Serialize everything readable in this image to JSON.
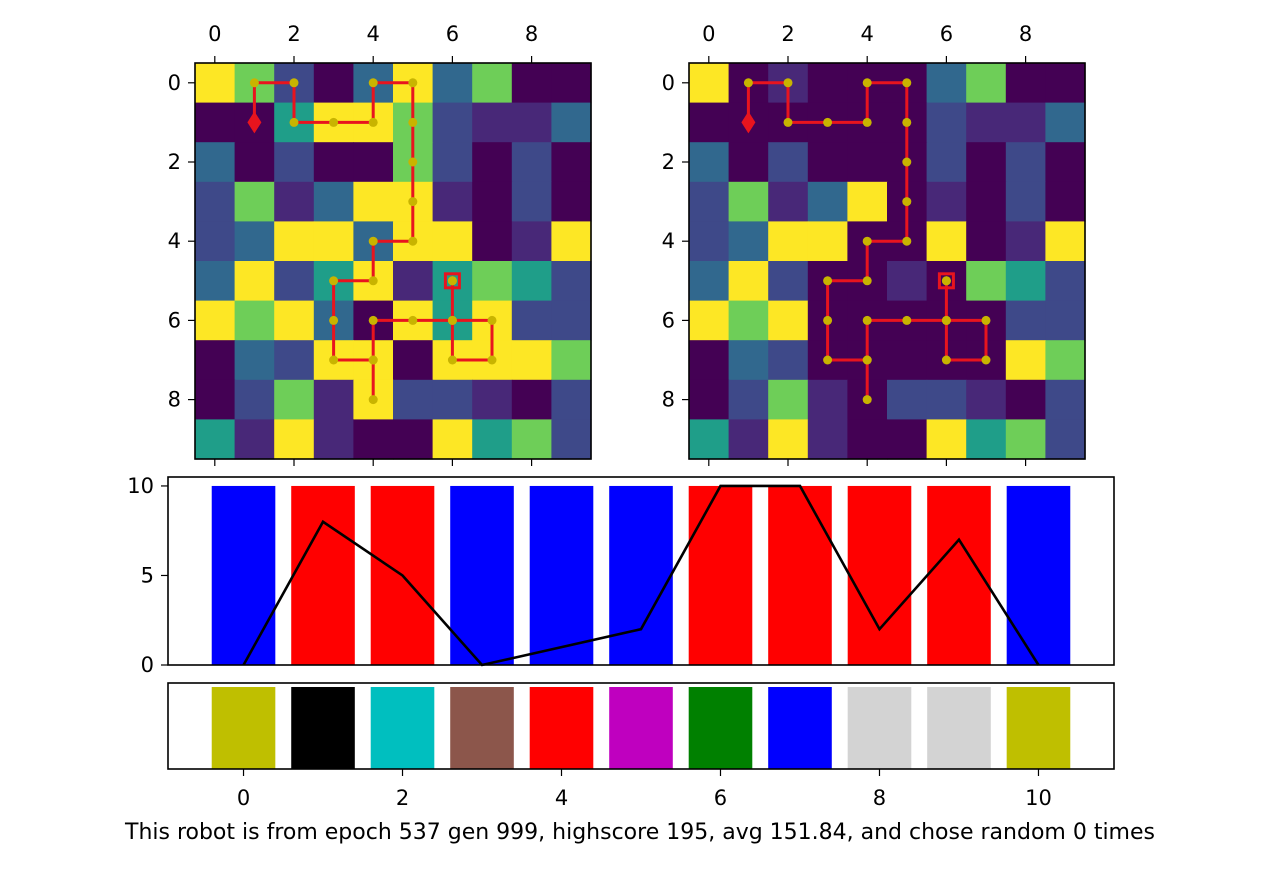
{
  "chart_data": [
    {
      "type": "heatmap",
      "colormap": "viridis",
      "xticks": [
        0,
        2,
        4,
        6,
        8
      ],
      "yticks": [
        0,
        2,
        4,
        6,
        8
      ],
      "grid": [
        [
          9,
          7,
          2,
          0,
          3,
          9,
          3,
          7,
          0,
          0
        ],
        [
          0,
          0,
          5,
          9,
          9,
          7,
          2,
          1,
          1,
          3
        ],
        [
          3,
          0,
          2,
          0,
          0,
          7,
          2,
          0,
          2,
          0
        ],
        [
          2,
          7,
          1,
          3,
          9,
          9,
          1,
          0,
          2,
          0
        ],
        [
          2,
          3,
          9,
          9,
          3,
          9,
          9,
          0,
          1,
          9
        ],
        [
          3,
          9,
          2,
          5,
          9,
          1,
          5,
          7,
          5,
          2
        ],
        [
          9,
          7,
          9,
          3,
          0,
          9,
          5,
          9,
          2,
          2
        ],
        [
          0,
          3,
          2,
          9,
          9,
          0,
          9,
          9,
          9,
          7
        ],
        [
          0,
          2,
          7,
          1,
          9,
          2,
          2,
          1,
          0,
          2
        ],
        [
          5,
          1,
          9,
          1,
          0,
          0,
          9,
          5,
          7,
          2
        ]
      ],
      "path": [
        [
          1,
          1
        ],
        [
          1,
          0
        ],
        [
          2,
          0
        ],
        [
          2,
          1
        ],
        [
          3,
          1
        ],
        [
          4,
          1
        ],
        [
          4,
          0
        ],
        [
          5,
          0
        ],
        [
          5,
          1
        ],
        [
          5,
          2
        ],
        [
          5,
          3
        ],
        [
          5,
          4
        ],
        [
          4,
          4
        ],
        [
          4,
          5
        ],
        [
          3,
          5
        ],
        [
          3,
          6
        ],
        [
          3,
          7
        ],
        [
          4,
          7
        ],
        [
          4,
          8
        ],
        [
          4,
          7
        ],
        [
          4,
          6
        ],
        [
          5,
          6
        ],
        [
          6,
          6
        ],
        [
          6,
          7
        ],
        [
          7,
          7
        ],
        [
          7,
          6
        ],
        [
          6,
          6
        ],
        [
          6,
          5
        ]
      ],
      "start": [
        1,
        1
      ],
      "end": [
        6,
        5
      ]
    },
    {
      "type": "heatmap",
      "colormap": "viridis",
      "xticks": [
        0,
        2,
        4,
        6,
        8
      ],
      "yticks": [
        0,
        2,
        4,
        6,
        8
      ],
      "grid": [
        [
          9,
          0,
          1,
          0,
          0,
          0,
          3,
          7,
          0,
          0
        ],
        [
          0,
          0,
          0,
          0,
          0,
          0,
          2,
          1,
          1,
          3
        ],
        [
          3,
          0,
          2,
          0,
          0,
          0,
          2,
          0,
          2,
          0
        ],
        [
          2,
          7,
          1,
          3,
          9,
          0,
          1,
          0,
          2,
          0
        ],
        [
          2,
          3,
          9,
          9,
          0,
          0,
          9,
          0,
          1,
          9
        ],
        [
          3,
          9,
          2,
          0,
          0,
          1,
          0,
          7,
          5,
          2
        ],
        [
          9,
          7,
          9,
          0,
          0,
          0,
          0,
          0,
          2,
          2
        ],
        [
          0,
          3,
          2,
          0,
          0,
          0,
          0,
          0,
          9,
          7
        ],
        [
          0,
          2,
          7,
          1,
          0,
          2,
          2,
          1,
          0,
          2
        ],
        [
          5,
          1,
          9,
          1,
          0,
          0,
          9,
          5,
          7,
          2
        ]
      ],
      "path": [
        [
          1,
          1
        ],
        [
          1,
          0
        ],
        [
          2,
          0
        ],
        [
          2,
          1
        ],
        [
          3,
          1
        ],
        [
          4,
          1
        ],
        [
          4,
          0
        ],
        [
          5,
          0
        ],
        [
          5,
          1
        ],
        [
          5,
          2
        ],
        [
          5,
          3
        ],
        [
          5,
          4
        ],
        [
          4,
          4
        ],
        [
          4,
          5
        ],
        [
          3,
          5
        ],
        [
          3,
          6
        ],
        [
          3,
          7
        ],
        [
          4,
          7
        ],
        [
          4,
          8
        ],
        [
          4,
          7
        ],
        [
          4,
          6
        ],
        [
          5,
          6
        ],
        [
          6,
          6
        ],
        [
          6,
          7
        ],
        [
          7,
          7
        ],
        [
          7,
          6
        ],
        [
          6,
          6
        ],
        [
          6,
          5
        ]
      ],
      "start": [
        1,
        1
      ],
      "end": [
        6,
        5
      ]
    },
    {
      "type": "bar",
      "categories": [
        0,
        1,
        2,
        3,
        4,
        5,
        6,
        7,
        8,
        9,
        10
      ],
      "values": [
        10,
        10,
        10,
        10,
        10,
        10,
        10,
        10,
        10,
        10,
        10
      ],
      "bar_colors": [
        "#0000ff",
        "#ff0000",
        "#ff0000",
        "#0000ff",
        "#0000ff",
        "#0000ff",
        "#ff0000",
        "#ff0000",
        "#ff0000",
        "#ff0000",
        "#0000ff"
      ],
      "line": {
        "x": [
          0,
          1,
          2,
          3,
          4,
          5,
          6,
          7,
          8,
          9,
          10
        ],
        "y": [
          0,
          8,
          5,
          0,
          1,
          2,
          10,
          10,
          2,
          7,
          0
        ],
        "color": "#000000"
      },
      "yticks": [
        0,
        5,
        10
      ],
      "ylim": [
        0,
        10.5
      ],
      "xlim": [
        -0.95,
        10.95
      ]
    },
    {
      "type": "bar",
      "categories": [
        0,
        1,
        2,
        3,
        4,
        5,
        6,
        7,
        8,
        9,
        10
      ],
      "values": [
        1,
        1,
        1,
        1,
        1,
        1,
        1,
        1,
        1,
        1,
        1
      ],
      "bar_colors": [
        "#bfbf00",
        "#000000",
        "#00bfbf",
        "#8c564b",
        "#ff0000",
        "#bf00bf",
        "#008000",
        "#0000ff",
        "#d3d3d3",
        "#d3d3d3",
        "#bfbf00"
      ],
      "xticks": [
        0,
        2,
        4,
        6,
        8,
        10
      ],
      "xlim": [
        -0.95,
        10.95
      ]
    }
  ],
  "caption": "This robot is from epoch 537 gen 999, highscore 195, avg 151.84, and chose random 0 times"
}
